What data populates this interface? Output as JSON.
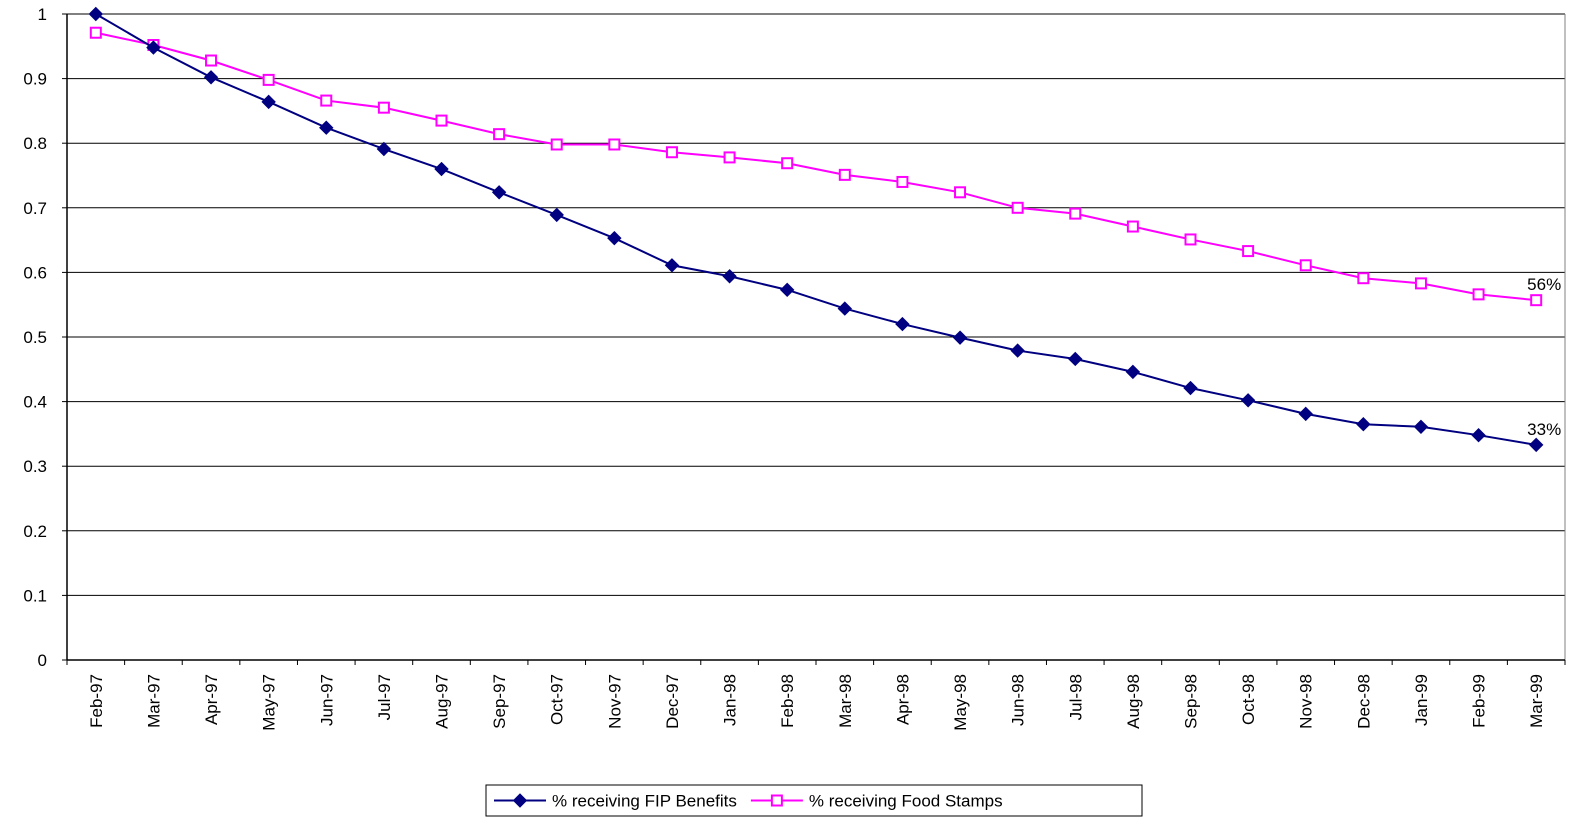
{
  "chart_data": {
    "type": "line",
    "title": "",
    "xlabel": "",
    "ylabel": "",
    "ylim": [
      0,
      1
    ],
    "yticks": [
      "0",
      "0.1",
      "0.2",
      "0.3",
      "0.4",
      "0.5",
      "0.6",
      "0.7",
      "0.8",
      "0.9",
      "1"
    ],
    "grid": true,
    "legend_position": "bottom",
    "categories": [
      "Feb-97",
      "Mar-97",
      "Apr-97",
      "May-97",
      "Jun-97",
      "Jul-97",
      "Aug-97",
      "Sep-97",
      "Oct-97",
      "Nov-97",
      "Dec-97",
      "Jan-98",
      "Feb-98",
      "Mar-98",
      "Apr-98",
      "May-98",
      "Jun-98",
      "Jul-98",
      "Aug-98",
      "Sep-98",
      "Oct-98",
      "Nov-98",
      "Dec-98",
      "Jan-99",
      "Feb-99",
      "Mar-99"
    ],
    "series": [
      {
        "name": "% receiving FIP Benefits",
        "color": "#000080",
        "marker": "diamond",
        "values": [
          1.0,
          0.948,
          0.902,
          0.864,
          0.824,
          0.791,
          0.76,
          0.724,
          0.689,
          0.653,
          0.611,
          0.594,
          0.573,
          0.544,
          0.52,
          0.499,
          0.479,
          0.466,
          0.446,
          0.421,
          0.402,
          0.381,
          0.365,
          0.361,
          0.348,
          0.333
        ],
        "end_label": "33%"
      },
      {
        "name": "% receiving Food Stamps",
        "color": "#FF00FF",
        "marker": "square",
        "values": [
          0.971,
          0.952,
          0.928,
          0.898,
          0.866,
          0.855,
          0.835,
          0.814,
          0.798,
          0.798,
          0.786,
          0.778,
          0.769,
          0.751,
          0.74,
          0.724,
          0.7,
          0.691,
          0.671,
          0.651,
          0.633,
          0.611,
          0.591,
          0.583,
          0.566,
          0.557
        ],
        "end_label": "56%"
      }
    ]
  }
}
